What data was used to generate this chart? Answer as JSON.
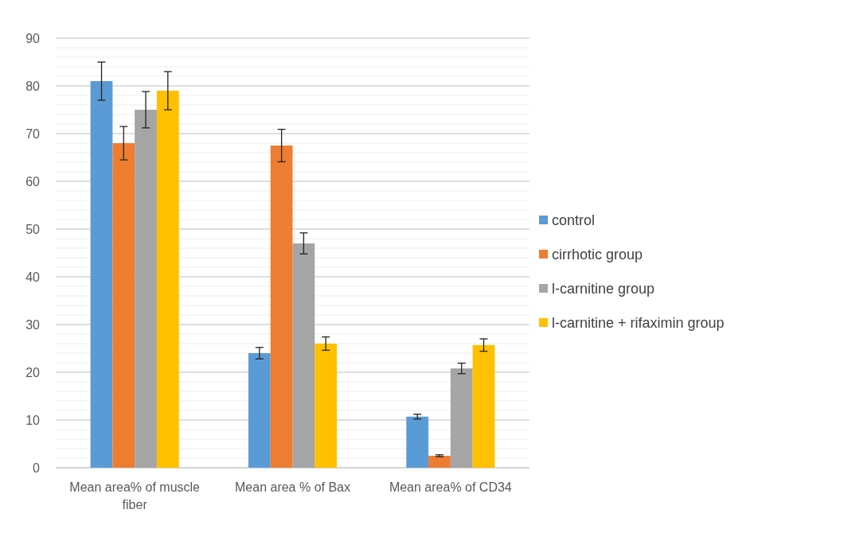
{
  "chart_data": {
    "type": "bar",
    "categories": [
      "Mean area% of muscle fiber",
      "Mean area % of Bax",
      "Mean area% of CD34"
    ],
    "series": [
      {
        "name": "control",
        "color": "#5b9bd5",
        "values": [
          81,
          24,
          10.7
        ],
        "errors": [
          4,
          1.2,
          0.5
        ]
      },
      {
        "name": "cirrhotic group",
        "color": "#ed7d31",
        "values": [
          68,
          67.5,
          2.5
        ],
        "errors": [
          3.5,
          3.4,
          0.2
        ]
      },
      {
        "name": "l-carnitine group",
        "color": "#a5a5a5",
        "values": [
          75,
          47,
          20.8
        ],
        "errors": [
          3.8,
          2.2,
          1.1
        ]
      },
      {
        "name": "l-carnitine + rifaximin group",
        "color": "#ffc000",
        "values": [
          79,
          26,
          25.7
        ],
        "errors": [
          4,
          1.4,
          1.3
        ]
      }
    ],
    "ylim": [
      0,
      90
    ],
    "yticks": [
      0,
      {
        "value": 2,
        "label": null
      },
      {
        "value": 4,
        "label": null
      },
      {
        "value": 6,
        "label": null
      },
      {
        "value": 8,
        "label": null
      },
      10,
      {
        "value": 12,
        "label": null
      },
      {
        "value": 14,
        "label": null
      },
      {
        "value": 16,
        "label": null
      },
      {
        "value": 18,
        "label": null
      },
      20,
      {
        "value": 22,
        "label": null
      },
      {
        "value": 24,
        "label": null
      },
      {
        "value": 26,
        "label": null
      },
      {
        "value": 28,
        "label": null
      },
      30,
      {
        "value": 32,
        "label": null
      },
      {
        "value": 34,
        "label": null
      },
      {
        "value": 36,
        "label": null
      },
      {
        "value": 38,
        "label": null
      },
      40,
      {
        "value": 42,
        "label": null
      },
      {
        "value": 44,
        "label": null
      },
      {
        "value": 46,
        "label": null
      },
      {
        "value": 48,
        "label": null
      },
      50,
      {
        "value": 52,
        "label": null
      },
      {
        "value": 54,
        "label": null
      },
      {
        "value": 56,
        "label": null
      },
      {
        "value": 58,
        "label": null
      },
      60,
      {
        "value": 62,
        "label": null
      },
      {
        "value": 64,
        "label": null
      },
      {
        "value": 66,
        "label": null
      },
      {
        "value": 68,
        "label": null
      },
      70,
      {
        "value": 72,
        "label": null
      },
      {
        "value": 74,
        "label": null
      },
      {
        "value": 76,
        "label": null
      },
      {
        "value": 78,
        "label": null
      },
      80,
      {
        "value": 82,
        "label": null
      },
      {
        "value": 84,
        "label": null
      },
      {
        "value": 86,
        "label": null
      },
      {
        "value": 88,
        "label": null
      },
      90
    ],
    "grid": true,
    "legend": "right"
  }
}
